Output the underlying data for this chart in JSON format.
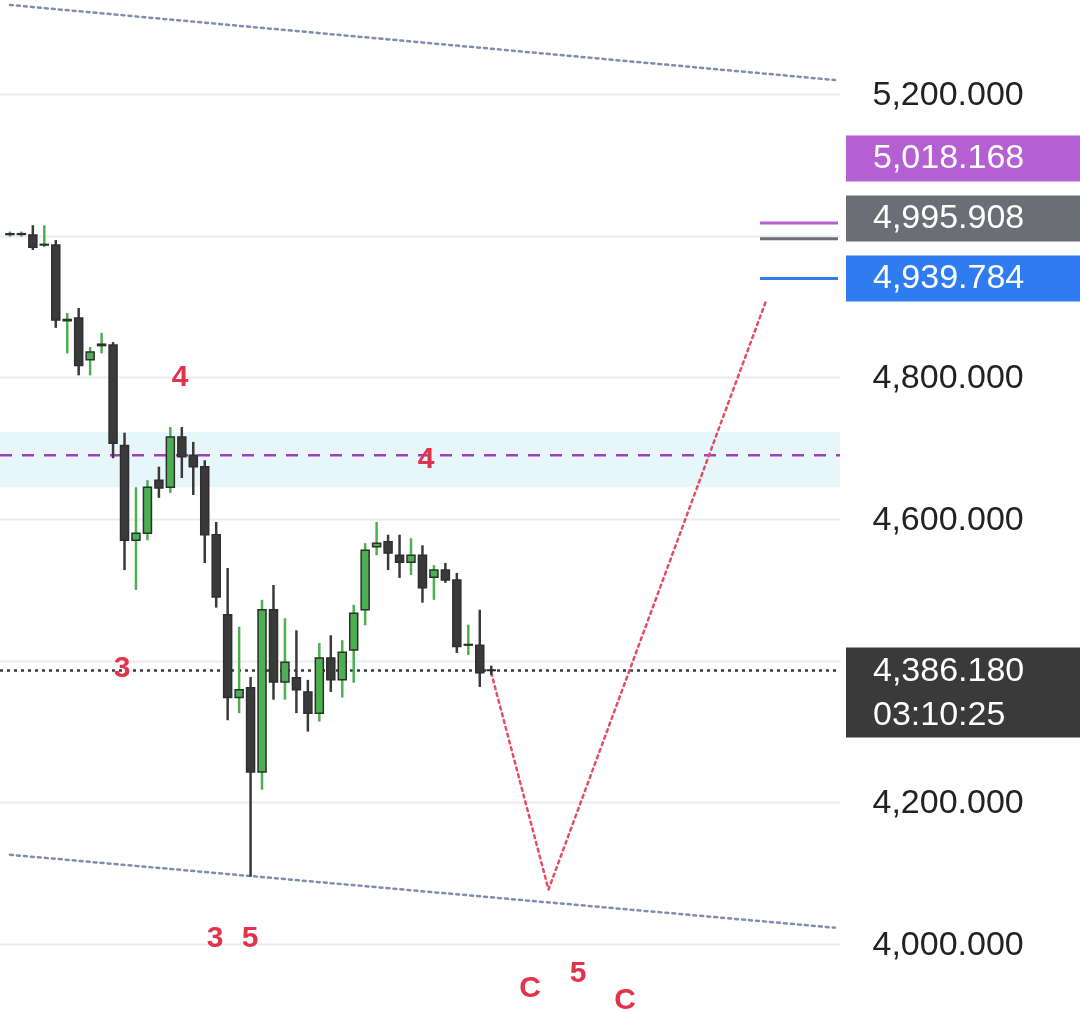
{
  "chart_data": {
    "type": "candlestick",
    "categories": [
      null,
      null,
      null,
      null,
      null,
      null,
      null,
      null,
      null,
      null,
      null,
      null,
      null,
      null,
      null,
      null,
      null,
      null,
      null,
      null,
      null,
      null,
      null,
      null,
      null,
      null,
      null,
      null,
      null,
      null,
      null,
      null,
      null,
      null,
      null,
      null,
      null,
      null,
      null,
      null,
      null,
      null,
      null,
      null,
      null,
      null,
      null,
      null,
      null,
      null,
      null,
      null,
      null,
      null,
      null,
      null,
      null,
      null,
      null,
      null,
      null,
      null,
      null,
      null,
      null,
      null,
      null,
      null,
      null,
      null,
      null,
      null,
      null
    ],
    "ohlc": [
      [
        5002,
        5006,
        4999,
        5003
      ],
      [
        5002,
        5006,
        4999,
        5003
      ],
      [
        5001,
        5015,
        4980,
        4984
      ],
      [
        4987,
        5015,
        4984,
        4988
      ],
      [
        4987,
        4994,
        4870,
        4881
      ],
      [
        4880,
        4891,
        4834,
        4882
      ],
      [
        4884,
        4898,
        4803,
        4817
      ],
      [
        4825,
        4843,
        4803,
        4836
      ],
      [
        4845,
        4863,
        4834,
        4847
      ],
      [
        4846,
        4850,
        4686,
        4707
      ],
      [
        4704,
        4722,
        4528,
        4570
      ],
      [
        4570,
        4645,
        4500,
        4580
      ],
      [
        4580,
        4655,
        4570,
        4645
      ],
      [
        4655,
        4674,
        4630,
        4644
      ],
      [
        4645,
        4730,
        4637,
        4716
      ],
      [
        4716,
        4730,
        4658,
        4688
      ],
      [
        4690,
        4709,
        4634,
        4674
      ],
      [
        4674,
        4683,
        4538,
        4578
      ],
      [
        4578,
        4596,
        4475,
        4490
      ],
      [
        4465,
        4531,
        4316,
        4348
      ],
      [
        4348,
        4448,
        4326,
        4359
      ],
      [
        4362,
        4377,
        4095,
        4243
      ],
      [
        4243,
        4486,
        4218,
        4472
      ],
      [
        4472,
        4507,
        4345,
        4370
      ],
      [
        4370,
        4460,
        4345,
        4398
      ],
      [
        4376,
        4443,
        4326,
        4359
      ],
      [
        4356,
        4373,
        4300,
        4326
      ],
      [
        4326,
        4425,
        4314,
        4404
      ],
      [
        4404,
        4436,
        4356,
        4373
      ],
      [
        4373,
        4429,
        4348,
        4412
      ],
      [
        4415,
        4479,
        4369,
        4467
      ],
      [
        4472,
        4566,
        4450,
        4556
      ],
      [
        4561,
        4596,
        4549,
        4566
      ],
      [
        4568,
        4578,
        4528,
        4552
      ],
      [
        4549,
        4578,
        4517,
        4539
      ],
      [
        4539,
        4573,
        4521,
        4549
      ],
      [
        4549,
        4563,
        4482,
        4503
      ],
      [
        4518,
        4535,
        4486,
        4528
      ],
      [
        4528,
        4538,
        4510,
        4514
      ],
      [
        4514,
        4524,
        4411,
        4420
      ],
      [
        4422,
        4451,
        4408,
        4423
      ],
      [
        4422,
        4472,
        4363,
        4383
      ],
      [
        4387,
        4393,
        4380,
        4386.18
      ],
      null,
      null,
      null,
      null,
      null,
      null,
      null,
      null,
      null,
      null,
      null,
      null,
      null,
      null,
      null,
      null,
      null,
      null,
      null,
      null,
      null,
      null,
      null,
      null,
      null,
      null,
      null,
      null,
      null,
      null
    ],
    "colors": [
      "#4caf50",
      "#4caf50",
      "#3a3a3a",
      "#4caf50",
      "#3a3a3a",
      "#4caf50",
      "#3a3a3a",
      "#4caf50",
      "#4caf50",
      "#3a3a3a",
      "#3a3a3a",
      "#4caf50",
      "#4caf50",
      "#3a3a3a",
      "#4caf50",
      "#3a3a3a",
      "#3a3a3a",
      "#3a3a3a",
      "#3a3a3a",
      "#3a3a3a",
      "#4caf50",
      "#3a3a3a",
      "#4caf50",
      "#3a3a3a",
      "#4caf50",
      "#3a3a3a",
      "#3a3a3a",
      "#4caf50",
      "#3a3a3a",
      "#4caf50",
      "#4caf50",
      "#4caf50",
      "#4caf50",
      "#3a3a3a",
      "#3a3a3a",
      "#4caf50",
      "#3a3a3a",
      "#4caf50",
      "#3a3a3a",
      "#3a3a3a",
      "#4caf50",
      "#3a3a3a",
      "#3a3a3a",
      null,
      null,
      null,
      null,
      null,
      null,
      null,
      null,
      null,
      null,
      null,
      null,
      null,
      null,
      null,
      null,
      null,
      null,
      null,
      null,
      null,
      null,
      null,
      null,
      null,
      null,
      null,
      null,
      null,
      null
    ],
    "series": [
      {
        "type": "line",
        "color": "#7f8fab",
        "line_style": "dotted",
        "values": [
          5326,
          null,
          null,
          null,
          null,
          null,
          null,
          null,
          null,
          null,
          null,
          null,
          null,
          null,
          null,
          null,
          null,
          null,
          null,
          null,
          null,
          null,
          null,
          null,
          null,
          null,
          null,
          null,
          null,
          null,
          null,
          null,
          null,
          null,
          null,
          null,
          null,
          null,
          null,
          null,
          null,
          null,
          null,
          null,
          null,
          null,
          null,
          null,
          null,
          null,
          null,
          null,
          null,
          null,
          null,
          null,
          null,
          null,
          null,
          null,
          null,
          null,
          null,
          null,
          null,
          null,
          null,
          null,
          null,
          null,
          null,
          null,
          5220
        ]
      },
      {
        "type": "line",
        "color": "#7f8fab",
        "line_style": "dotted",
        "values": [
          4126,
          null,
          null,
          null,
          null,
          null,
          null,
          null,
          null,
          null,
          null,
          null,
          null,
          null,
          null,
          null,
          null,
          null,
          null,
          null,
          null,
          null,
          null,
          null,
          null,
          null,
          null,
          null,
          null,
          null,
          null,
          null,
          null,
          null,
          null,
          null,
          null,
          null,
          null,
          null,
          null,
          null,
          null,
          null,
          null,
          null,
          null,
          null,
          null,
          null,
          null,
          null,
          null,
          null,
          null,
          null,
          null,
          null,
          null,
          null,
          null,
          null,
          null,
          null,
          null,
          null,
          null,
          null,
          null,
          null,
          null,
          null,
          4023
        ]
      },
      {
        "type": "line",
        "color": "#e0505f",
        "line_style": "dotted",
        "values": [
          null,
          null,
          null,
          null,
          null,
          null,
          null,
          null,
          null,
          null,
          null,
          null,
          null,
          null,
          null,
          null,
          null,
          null,
          null,
          null,
          null,
          null,
          null,
          null,
          null,
          null,
          null,
          null,
          null,
          null,
          null,
          null,
          null,
          null,
          null,
          null,
          null,
          null,
          null,
          null,
          null,
          null,
          4383,
          null,
          null,
          null,
          null,
          4077,
          null,
          null,
          null,
          null,
          null,
          null,
          null,
          null,
          null,
          null,
          null,
          null,
          null,
          null,
          null,
          null,
          null,
          null,
          4909,
          null,
          null,
          null,
          null,
          null,
          null
        ]
      }
    ],
    "bands": [
      {
        "axis": "y",
        "from": 4645,
        "to": 4723,
        "color": "#e3f5fb"
      }
    ],
    "ref_lines": [
      {
        "axis": "y",
        "value": 4690,
        "color": "#a040c0",
        "line_style": "dashed"
      },
      {
        "axis": "y",
        "value": 4386.18,
        "label": "4,386.180",
        "color": "#3a3a3a",
        "line_style": "dotted"
      },
      {
        "axis": "y",
        "value": 5018.168,
        "label": "5,018.168",
        "color": "#b45fd2"
      },
      {
        "axis": "y",
        "value": 4995.908,
        "label": "4,995.908",
        "color": "#6b6e75"
      },
      {
        "axis": "y",
        "value": 4939.784,
        "label": "4,939.784",
        "color": "#2f7bf0"
      }
    ],
    "annotations": [
      "03:10:25",
      "4",
      {
        "text": "3",
        "y": 4390
      },
      {
        "text": "4",
        "y": 4685
      },
      "3",
      "5",
      "C",
      "5",
      "C"
    ],
    "ylim": [
      3904,
      5333
    ],
    "yticks": [
      {
        "value": 4000,
        "label": "4,000.000"
      },
      {
        "value": 4200,
        "label": "4,200.000"
      },
      {
        "value": 4400,
        "label": null
      },
      {
        "value": 4600,
        "label": "4,600.000"
      },
      {
        "value": 4800,
        "label": "4,800.000"
      },
      {
        "value": 5000,
        "label": null
      },
      {
        "value": 5200,
        "label": "5,200.000"
      }
    ],
    "grid": "y",
    "tick_labels": "y"
  }
}
